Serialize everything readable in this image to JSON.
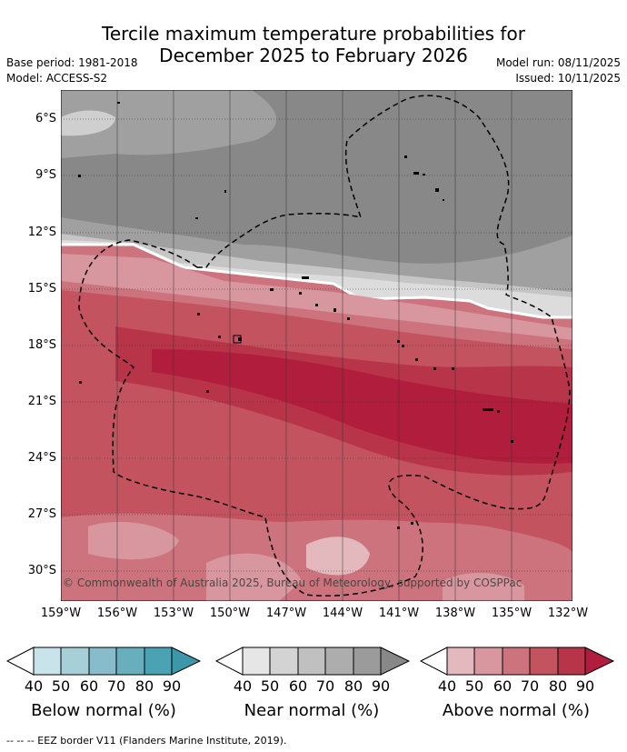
{
  "title_line1": "Tercile maximum temperature probabilities for",
  "title_line2": "December 2025 to February 2026",
  "base_period": "Base period: 1981-2018",
  "model": "Model: ACCESS-S2",
  "model_run": "Model run: 08/11/2025",
  "issued": "Issued: 10/11/2025",
  "copyright": "© Commonwealth of Australia 2025, Bureau of Meteorology, supported by COSPPac",
  "lat_labels": [
    "6°S",
    "9°S",
    "12°S",
    "15°S",
    "18°S",
    "21°S",
    "24°S",
    "27°S",
    "30°S"
  ],
  "lon_labels": [
    "159°W",
    "156°W",
    "153°W",
    "150°W",
    "147°W",
    "144°W",
    "141°W",
    "138°W",
    "135°W",
    "132°W"
  ],
  "legend": {
    "ticks": [
      "40",
      "50",
      "60",
      "70",
      "80",
      "90"
    ],
    "below": {
      "title": "Below normal (%)",
      "colors": [
        "#ffffff",
        "#c9e3ea",
        "#a7cfd8",
        "#87bccb",
        "#68aebd",
        "#4aa2b3"
      ]
    },
    "near": {
      "title": "Near normal (%)",
      "colors": [
        "#ffffff",
        "#e6e6e6",
        "#d3d3d3",
        "#c0c0c0",
        "#adadad",
        "#9b9b9b",
        "#888888"
      ]
    },
    "above": {
      "title": "Above normal (%)",
      "colors": [
        "#ffffff",
        "#e3b9be",
        "#d8969e",
        "#cc737e",
        "#c3545f",
        "#b83449",
        "#b11d3c"
      ]
    }
  },
  "footer": "--  --  -- EEZ border V11 (Flanders Marine Institute, 2019)."
}
